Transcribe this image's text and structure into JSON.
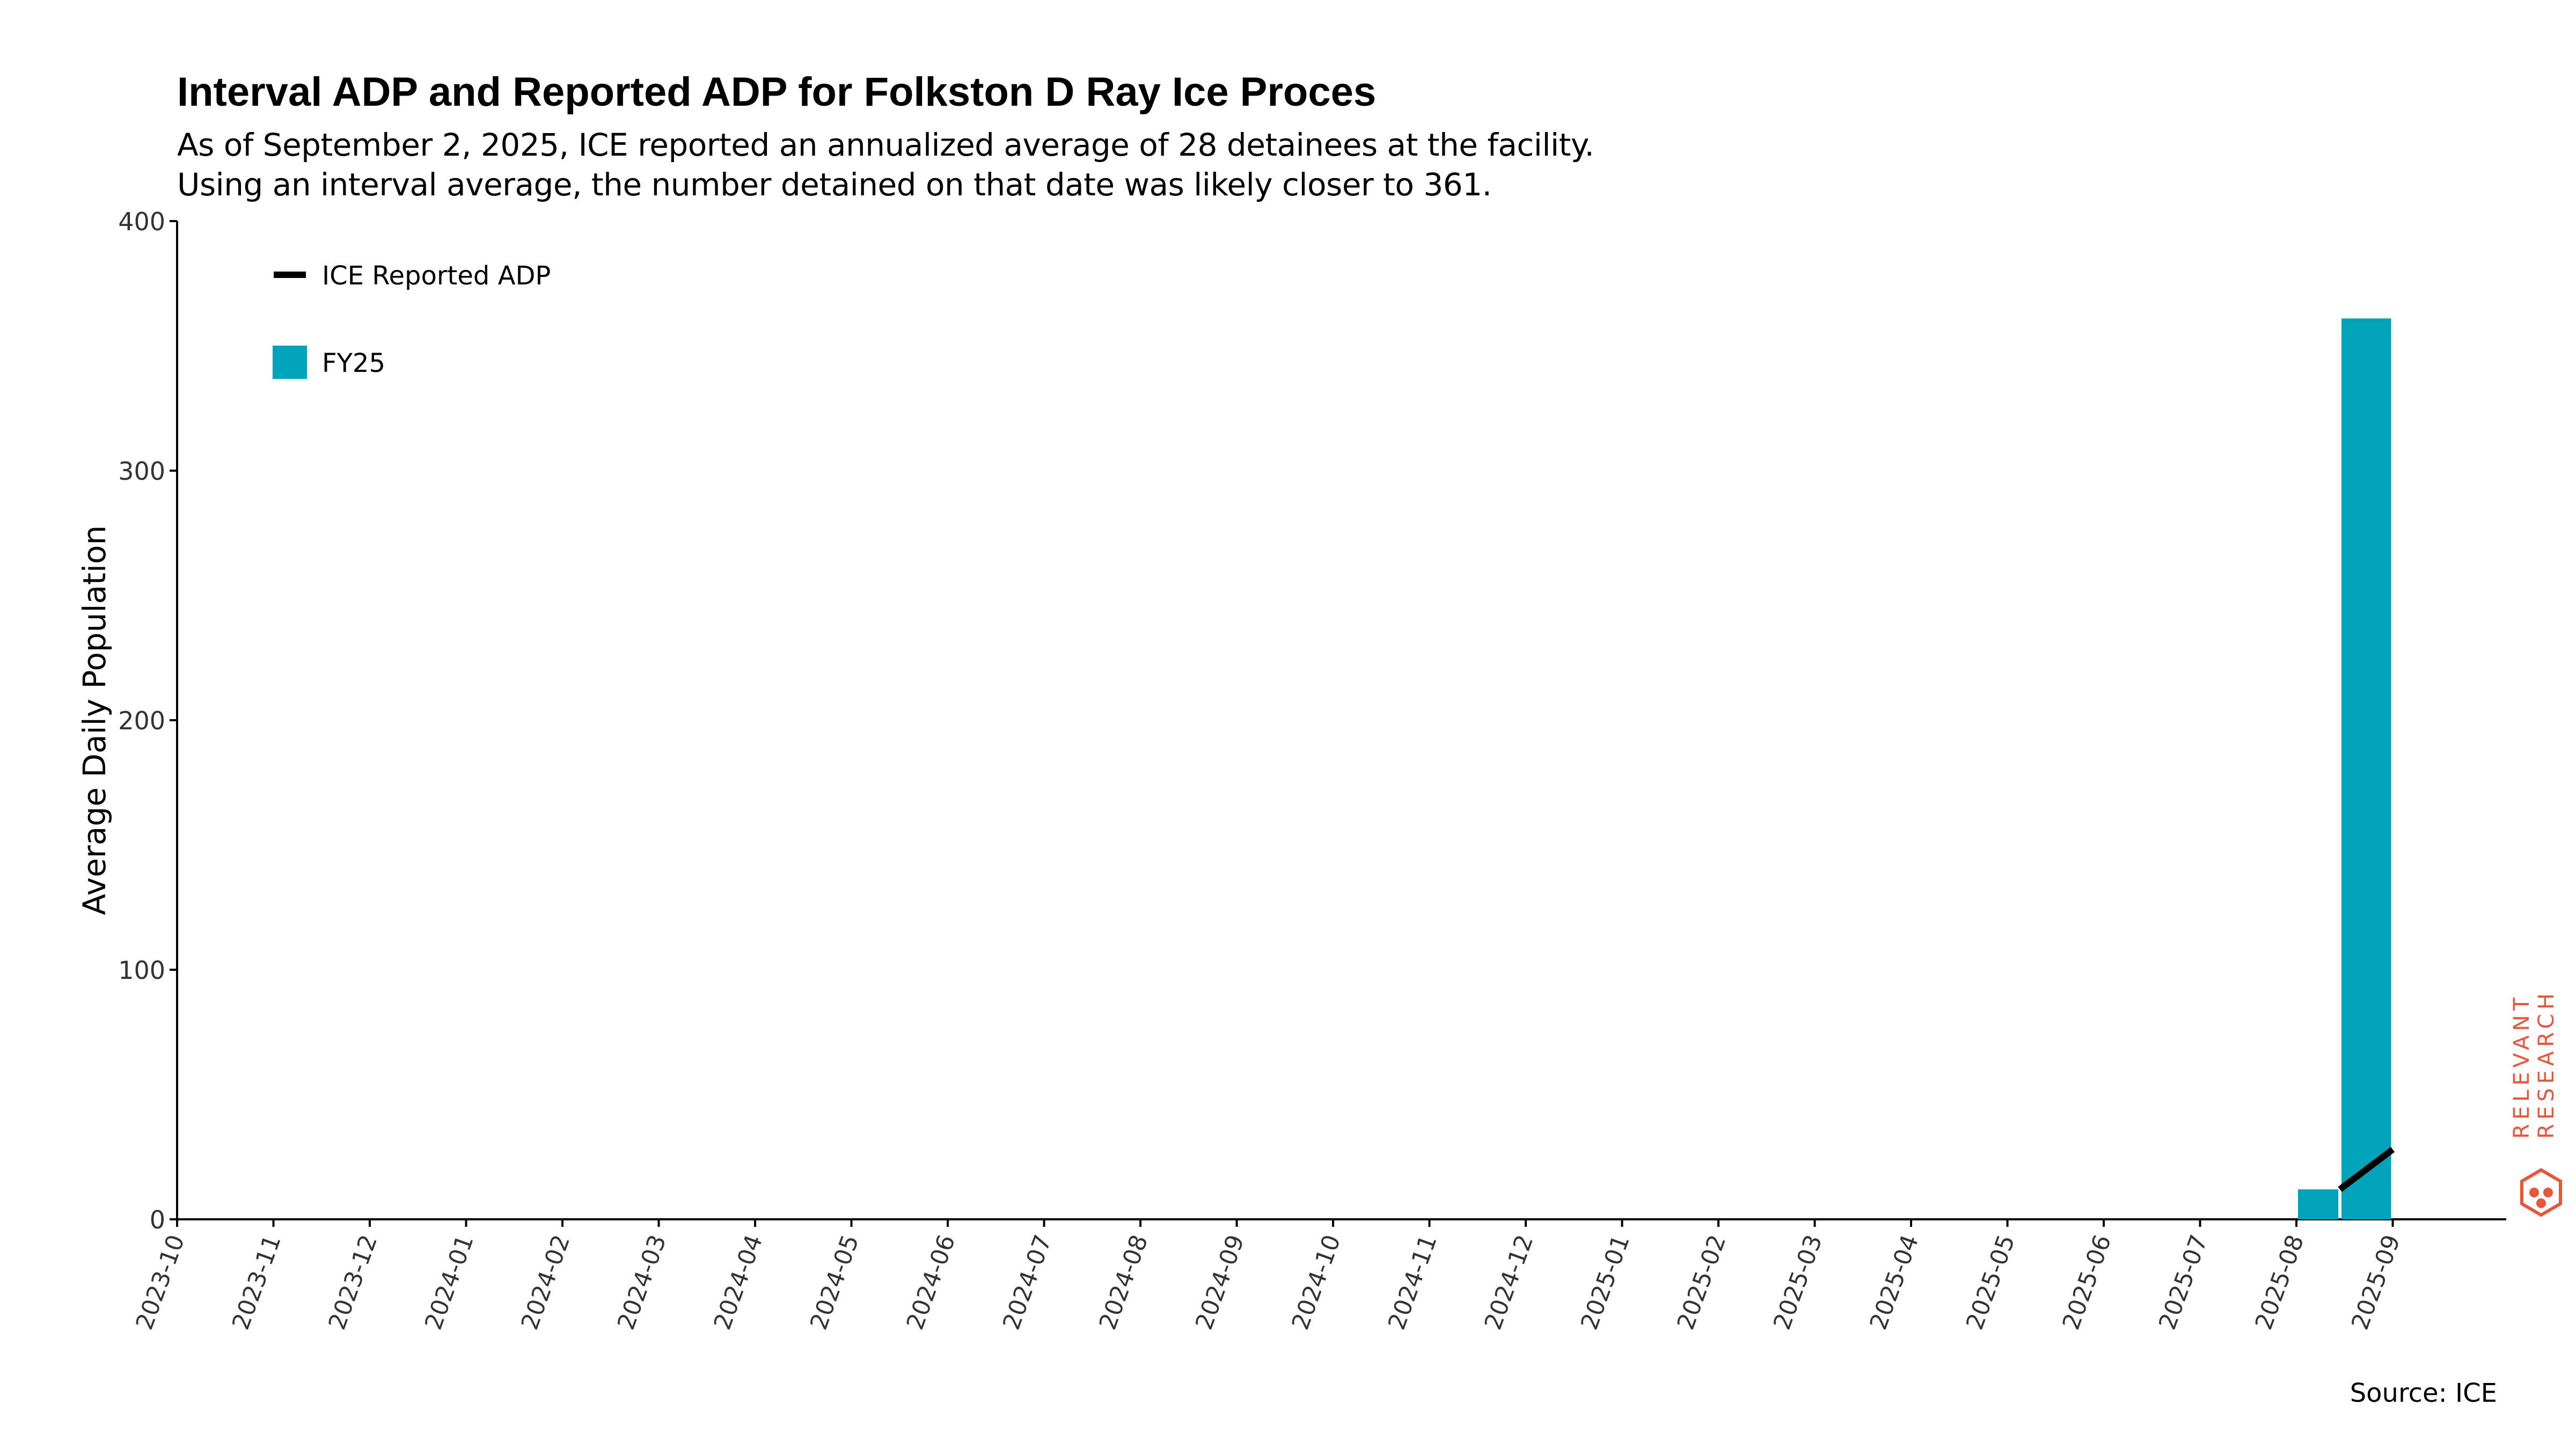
{
  "title": "Interval ADP and Reported ADP for Folkston D Ray Ice Proces",
  "subtitle_lines": [
    "As of September 2, 2025, ICE reported an annualized average of 28 detainees at the facility.",
    "Using an interval average, the number detained on that date was likely closer to 361."
  ],
  "source": "Source: ICE",
  "logo_text": [
    "RELEVANT",
    "RESEARCH"
  ],
  "colors": {
    "bar": "#00A3BA",
    "line": "#000000",
    "logo": "#E8553A",
    "axis": "#000000"
  },
  "chart_data": {
    "type": "bar",
    "ylabel": "Average Daily Population",
    "ylim": [
      0,
      400
    ],
    "yticks": [
      0,
      100,
      200,
      300,
      400
    ],
    "xticks": [
      "2023-10",
      "2023-11",
      "2023-12",
      "2024-01",
      "2024-02",
      "2024-03",
      "2024-04",
      "2024-05",
      "2024-06",
      "2024-07",
      "2024-08",
      "2024-09",
      "2024-10",
      "2024-11",
      "2024-12",
      "2025-01",
      "2025-02",
      "2025-03",
      "2025-04",
      "2025-05",
      "2025-06",
      "2025-07",
      "2025-08",
      "2025-09"
    ],
    "legend_position": "top-left",
    "series": [
      {
        "name": "FY25",
        "type": "bar",
        "bars": [
          {
            "start": "2025-08-01",
            "end": "2025-08-15",
            "value": 12
          },
          {
            "start": "2025-08-15",
            "end": "2025-09-01",
            "value": 361
          }
        ]
      },
      {
        "name": "ICE Reported ADP",
        "type": "line",
        "points": [
          {
            "x": "2025-08-15",
            "y": 12
          },
          {
            "x": "2025-09-01",
            "y": 28
          }
        ]
      }
    ]
  }
}
